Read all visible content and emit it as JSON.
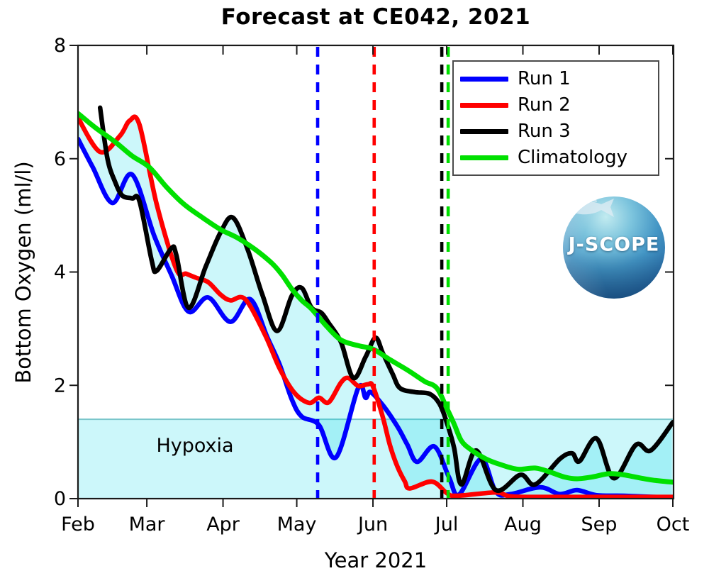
{
  "logo": {
    "text": "J-SCOPE"
  },
  "legend": {
    "items": [
      {
        "label": "Run 1",
        "color": "#0000ff"
      },
      {
        "label": "Run 2",
        "color": "#ff0000"
      },
      {
        "label": "Run 3",
        "color": "#000000"
      },
      {
        "label": "Climatology",
        "color": "#00e000"
      }
    ]
  },
  "chart_data": {
    "type": "line",
    "title": "Forecast at CE042, 2021",
    "xlabel": "Year 2021",
    "ylabel": "Bottom Oxygen (ml/l)",
    "x_axis": {
      "unit": "days since Feb 1, 2021",
      "tick_days": [
        0,
        28,
        59,
        89,
        120,
        150,
        181,
        212,
        242
      ],
      "tick_labels": [
        "Feb",
        "Mar",
        "Apr",
        "May",
        "Jun",
        "Jul",
        "Aug",
        "Sep",
        "Oct"
      ]
    },
    "y_axis": {
      "ticks": [
        0,
        2,
        4,
        6,
        8
      ],
      "lim": [
        0,
        8
      ]
    },
    "hypoxia_region": {
      "label": "Hypoxia",
      "threshold": 1.4,
      "fill": "rgba(0,214,228,0.20)",
      "edge_color": "#7ac6cb",
      "label_day": 47.6,
      "label_value": 0.94
    },
    "ensemble_envelope": {
      "description": "min-max spread across Run 1, Run 2, Run 3",
      "fill": "rgba(0,214,228,0.20)"
    },
    "vlines": [
      {
        "day": 97.5,
        "color": "#0000ff"
      },
      {
        "day": 120.5,
        "color": "#ff0000"
      },
      {
        "day": 148.0,
        "color": "#000000"
      },
      {
        "day": 150.6,
        "color": "#00e000"
      }
    ],
    "series": [
      {
        "name": "Run 1",
        "color": "#0000ff",
        "width": 6.5,
        "in_envelope": true,
        "points": [
          [
            0,
            6.35
          ],
          [
            6,
            5.85
          ],
          [
            14,
            5.22
          ],
          [
            22,
            5.72
          ],
          [
            31,
            4.64
          ],
          [
            38,
            3.95
          ],
          [
            45,
            3.3
          ],
          [
            53,
            3.55
          ],
          [
            62,
            3.12
          ],
          [
            70,
            3.52
          ],
          [
            77,
            2.85
          ],
          [
            82,
            2.37
          ],
          [
            87,
            1.75
          ],
          [
            91,
            1.45
          ],
          [
            98,
            1.3
          ],
          [
            105,
            0.73
          ],
          [
            114,
            1.95
          ],
          [
            117,
            1.78
          ],
          [
            119,
            1.88
          ],
          [
            124,
            1.65
          ],
          [
            130,
            1.27
          ],
          [
            134,
            0.95
          ],
          [
            138,
            0.65
          ],
          [
            145,
            0.92
          ],
          [
            151,
            0.37
          ],
          [
            155,
            0.07
          ],
          [
            164,
            0.7
          ],
          [
            170,
            0.12
          ],
          [
            176,
            0.08
          ],
          [
            188,
            0.2
          ],
          [
            196,
            0.08
          ],
          [
            203,
            0.15
          ],
          [
            211,
            0.06
          ],
          [
            222,
            0.05
          ],
          [
            234,
            0.03
          ],
          [
            242,
            0.02
          ]
        ]
      },
      {
        "name": "Run 2",
        "color": "#ff0000",
        "width": 6.5,
        "in_envelope": true,
        "points": [
          [
            0,
            6.72
          ],
          [
            9,
            6.12
          ],
          [
            17,
            6.4
          ],
          [
            21,
            6.67
          ],
          [
            25,
            6.6
          ],
          [
            32,
            5.2
          ],
          [
            40,
            4.05
          ],
          [
            44,
            3.97
          ],
          [
            48,
            3.9
          ],
          [
            53,
            3.82
          ],
          [
            58,
            3.6
          ],
          [
            62,
            3.5
          ],
          [
            68,
            3.52
          ],
          [
            76,
            2.9
          ],
          [
            82,
            2.3
          ],
          [
            88,
            1.87
          ],
          [
            94,
            1.69
          ],
          [
            98,
            1.78
          ],
          [
            102,
            1.7
          ],
          [
            107,
            2.05
          ],
          [
            110,
            2.13
          ],
          [
            114,
            1.99
          ],
          [
            118,
            2.02
          ],
          [
            120,
            1.98
          ],
          [
            124,
            1.44
          ],
          [
            127,
            0.93
          ],
          [
            130,
            0.56
          ],
          [
            133,
            0.3
          ],
          [
            135,
            0.18
          ],
          [
            144,
            0.3
          ],
          [
            150,
            0.1
          ],
          [
            154,
            0.05
          ],
          [
            170,
            0.11
          ],
          [
            176,
            0.04
          ],
          [
            191,
            0.03
          ],
          [
            212,
            0.03
          ],
          [
            242,
            0.03
          ]
        ]
      },
      {
        "name": "Run 3",
        "color": "#000000",
        "width": 6.5,
        "in_envelope": true,
        "points": [
          [
            9,
            6.9
          ],
          [
            12,
            6.0
          ],
          [
            15,
            5.6
          ],
          [
            18,
            5.35
          ],
          [
            22,
            5.3
          ],
          [
            25,
            5.25
          ],
          [
            30,
            4.2
          ],
          [
            32,
            4.02
          ],
          [
            38,
            4.42
          ],
          [
            40,
            4.3
          ],
          [
            45,
            3.37
          ],
          [
            52,
            4.1
          ],
          [
            58,
            4.7
          ],
          [
            63,
            4.96
          ],
          [
            69,
            4.4
          ],
          [
            75,
            3.6
          ],
          [
            81,
            2.96
          ],
          [
            87,
            3.58
          ],
          [
            91,
            3.72
          ],
          [
            95,
            3.37
          ],
          [
            99,
            3.28
          ],
          [
            102,
            3.1
          ],
          [
            107,
            2.76
          ],
          [
            112,
            2.13
          ],
          [
            117,
            2.5
          ],
          [
            121,
            2.84
          ],
          [
            124,
            2.57
          ],
          [
            128,
            2.2
          ],
          [
            131,
            1.95
          ],
          [
            137,
            1.88
          ],
          [
            143,
            1.85
          ],
          [
            147,
            1.68
          ],
          [
            150,
            1.35
          ],
          [
            153,
            0.9
          ],
          [
            156,
            0.25
          ],
          [
            162,
            0.85
          ],
          [
            170,
            0.15
          ],
          [
            180,
            0.42
          ],
          [
            186,
            0.25
          ],
          [
            196,
            0.7
          ],
          [
            201,
            0.8
          ],
          [
            204,
            0.66
          ],
          [
            211,
            1.06
          ],
          [
            218,
            0.36
          ],
          [
            227,
            0.95
          ],
          [
            233,
            0.85
          ],
          [
            242,
            1.35
          ]
        ]
      },
      {
        "name": "Climatology",
        "color": "#00e000",
        "width": 7,
        "in_envelope": false,
        "points": [
          [
            0,
            6.8
          ],
          [
            7,
            6.55
          ],
          [
            15,
            6.3
          ],
          [
            22,
            6.05
          ],
          [
            29,
            5.85
          ],
          [
            36,
            5.5
          ],
          [
            43,
            5.2
          ],
          [
            51,
            4.95
          ],
          [
            58,
            4.75
          ],
          [
            65,
            4.6
          ],
          [
            72,
            4.4
          ],
          [
            79,
            4.15
          ],
          [
            83,
            3.95
          ],
          [
            87,
            3.7
          ],
          [
            91,
            3.5
          ],
          [
            95,
            3.35
          ],
          [
            101,
            3.05
          ],
          [
            107,
            2.8
          ],
          [
            114,
            2.7
          ],
          [
            120,
            2.64
          ],
          [
            127,
            2.45
          ],
          [
            134,
            2.27
          ],
          [
            141,
            2.07
          ],
          [
            146,
            1.95
          ],
          [
            150,
            1.6
          ],
          [
            153,
            1.32
          ],
          [
            156,
            1.02
          ],
          [
            160,
            0.86
          ],
          [
            166,
            0.7
          ],
          [
            172,
            0.6
          ],
          [
            179,
            0.52
          ],
          [
            186,
            0.54
          ],
          [
            192,
            0.47
          ],
          [
            198,
            0.38
          ],
          [
            203,
            0.35
          ],
          [
            209,
            0.38
          ],
          [
            216,
            0.44
          ],
          [
            222,
            0.42
          ],
          [
            228,
            0.37
          ],
          [
            235,
            0.32
          ],
          [
            242,
            0.29
          ]
        ]
      }
    ]
  }
}
